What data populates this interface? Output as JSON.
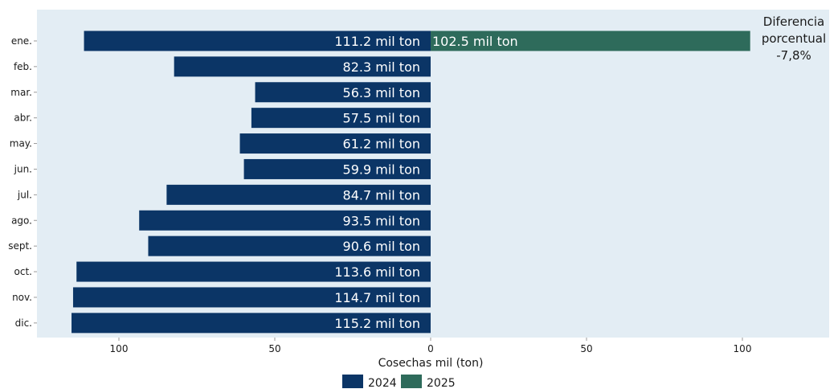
{
  "chart_data": {
    "type": "bar",
    "orientation": "horizontal-diverging",
    "title": "",
    "xlabel": "Cosechas mil (ton)",
    "ylabel": "",
    "categories": [
      "ene.",
      "feb.",
      "mar.",
      "abr.",
      "may.",
      "jun.",
      "jul.",
      "ago.",
      "sept.",
      "oct.",
      "nov.",
      "dic."
    ],
    "series": [
      {
        "name": "2024",
        "color": "#0b3566",
        "direction": "left",
        "values": [
          111.2,
          82.3,
          56.3,
          57.5,
          61.2,
          59.9,
          84.7,
          93.5,
          90.6,
          113.6,
          114.7,
          115.2
        ],
        "labels": [
          "111.2 mil ton",
          "82.3 mil ton",
          "56.3 mil ton",
          "57.5 mil ton",
          "61.2 mil ton",
          "59.9 mil ton",
          "84.7 mil ton",
          "93.5 mil ton",
          "90.6 mil ton",
          "113.6 mil ton",
          "114.7 mil ton",
          "115.2 mil ton"
        ]
      },
      {
        "name": "2025",
        "color": "#2e6b5b",
        "direction": "right",
        "values": [
          102.5,
          null,
          null,
          null,
          null,
          null,
          null,
          null,
          null,
          null,
          null,
          null
        ],
        "labels": [
          "102.5 mil ton",
          null,
          null,
          null,
          null,
          null,
          null,
          null,
          null,
          null,
          null,
          null
        ]
      }
    ],
    "x_ticks": [
      {
        "value": -100,
        "label": "100"
      },
      {
        "value": -50,
        "label": "50"
      },
      {
        "value": 0,
        "label": "0"
      },
      {
        "value": 50,
        "label": "50"
      },
      {
        "value": 100,
        "label": "100"
      }
    ],
    "xlim": [
      -127,
      130
    ],
    "annotation": {
      "lines": [
        "Diferencia",
        "porcentual",
        "-7,8%"
      ]
    },
    "legend": {
      "placement": "bottom"
    },
    "background": "#e3edf4",
    "grid": false
  }
}
